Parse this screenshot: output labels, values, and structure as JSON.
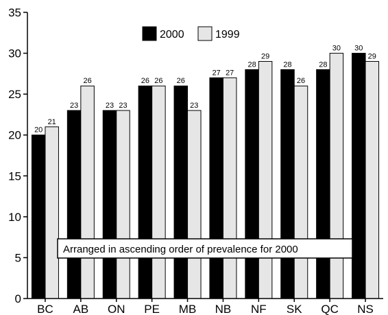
{
  "chart_data": {
    "type": "bar",
    "categories": [
      "BC",
      "AB",
      "ON",
      "PE",
      "MB",
      "NB",
      "NF",
      "SK",
      "QC",
      "NS"
    ],
    "series": [
      {
        "name": "2000",
        "values": [
          20,
          23,
          23,
          26,
          26,
          27,
          28,
          28,
          28,
          30
        ],
        "color": "#000000"
      },
      {
        "name": "1999",
        "values": [
          21,
          26,
          23,
          26,
          23,
          27,
          29,
          26,
          30,
          29
        ],
        "color": "#e6e6e6"
      }
    ],
    "ylim": [
      0,
      35
    ],
    "yticks": [
      0,
      5,
      10,
      15,
      20,
      25,
      30,
      35
    ],
    "xlabel": "",
    "ylabel": "",
    "grid": false,
    "legend": {
      "position": "top-center"
    },
    "annotation": "Arranged in ascending order of prevalence for 2000"
  }
}
